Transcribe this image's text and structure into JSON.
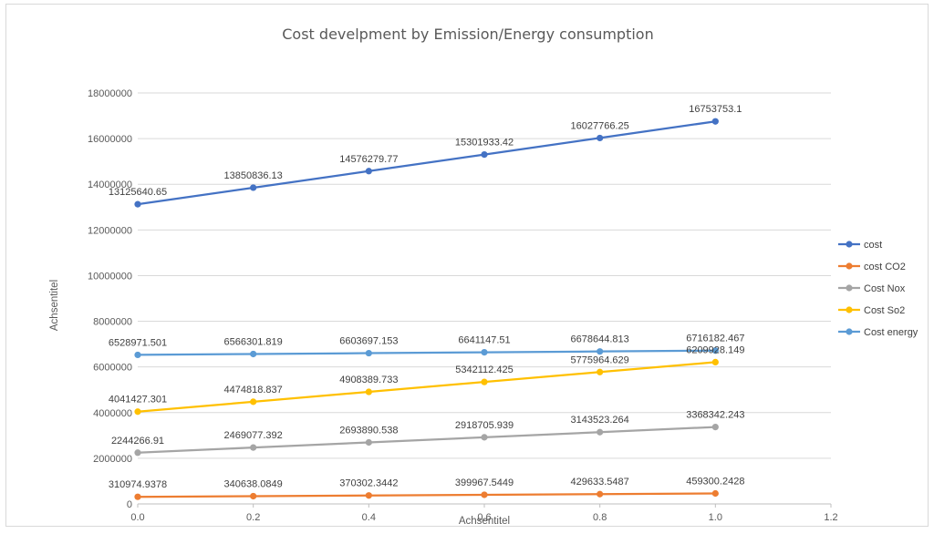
{
  "chart_data": {
    "type": "line",
    "title": "Cost develpment by Emission/Energy consumption",
    "xlabel": "Achsentitel",
    "ylabel": "Achsentitel",
    "xlim": [
      0,
      1.2
    ],
    "ylim": [
      0,
      18000000
    ],
    "x_ticks": [
      "0.0",
      "0.2",
      "0.4",
      "0.6",
      "0.8",
      "1.0",
      "1.2"
    ],
    "y_ticks": [
      "0",
      "2000000",
      "4000000",
      "6000000",
      "8000000",
      "10000000",
      "12000000",
      "14000000",
      "16000000",
      "18000000"
    ],
    "x": [
      0.0,
      0.2,
      0.4,
      0.6,
      0.8,
      1.0
    ],
    "grid": "horizontal",
    "legend_position": "right",
    "series": [
      {
        "name": "cost",
        "color": "#4472C4",
        "values": [
          13125640.65,
          13850836.13,
          14576279.77,
          15301933.42,
          16027766.25,
          16753753.1
        ],
        "labels": [
          "13125640.65",
          "13850836.13",
          "14576279.77",
          "15301933.42",
          "16027766.25",
          "16753753.1"
        ]
      },
      {
        "name": "cost CO2",
        "color": "#ED7D31",
        "values": [
          310974.9378,
          340638.0849,
          370302.3442,
          399967.5449,
          429633.5487,
          459300.2428
        ],
        "labels": [
          "310974.9378",
          "340638.0849",
          "370302.3442",
          "399967.5449",
          "429633.5487",
          "459300.2428"
        ]
      },
      {
        "name": "Cost Nox",
        "color": "#A5A5A5",
        "values": [
          2244266.91,
          2469077.392,
          2693890.538,
          2918705.939,
          3143523.264,
          3368342.243
        ],
        "labels": [
          "2244266.91",
          "2469077.392",
          "2693890.538",
          "2918705.939",
          "3143523.264",
          "3368342.243"
        ]
      },
      {
        "name": "Cost So2",
        "color": "#FFC000",
        "values": [
          4041427.301,
          4474818.837,
          4908389.733,
          5342112.425,
          5775964.629,
          6209928.149
        ],
        "labels": [
          "4041427.301",
          "4474818.837",
          "4908389.733",
          "5342112.425",
          "5775964.629",
          "6209928.149"
        ]
      },
      {
        "name": "Cost energy",
        "color": "#5B9BD5",
        "values": [
          6528971.501,
          6566301.819,
          6603697.153,
          6641147.51,
          6678644.813,
          6716182.467
        ],
        "labels": [
          "6528971.501",
          "6566301.819",
          "6603697.153",
          "6641147.51",
          "6678644.813",
          "6716182.467"
        ]
      }
    ]
  }
}
